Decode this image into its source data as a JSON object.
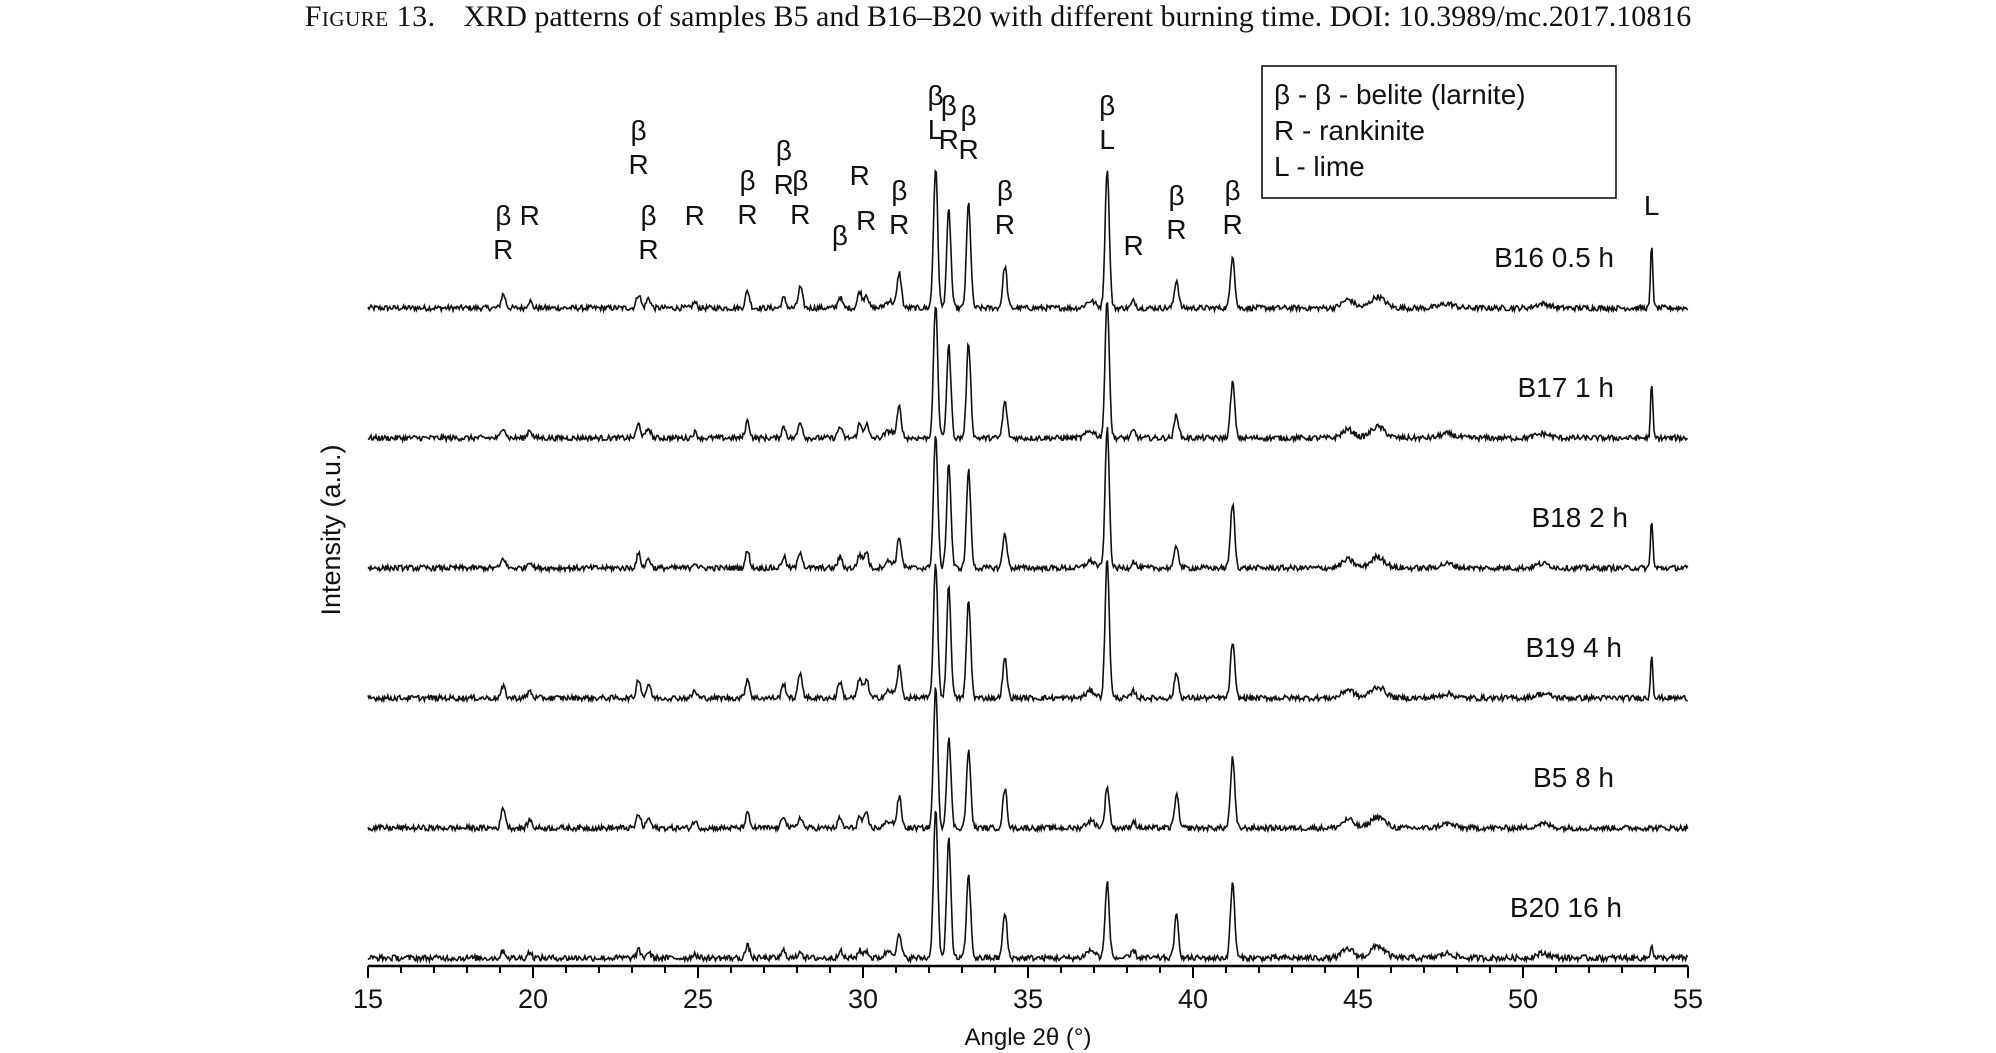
{
  "caption": {
    "label": "Figure 13.",
    "text": "XRD patterns of samples B5 and B16–B20 with different burning time. DOI: 10.3989/mc.2017.10816"
  },
  "chart_data": {
    "type": "line",
    "xlabel": "Angle 2θ (°)",
    "ylabel": "Intensity (a.u.)",
    "xlim": [
      15,
      55
    ],
    "xticks": [
      15,
      20,
      25,
      30,
      35,
      40,
      45,
      50,
      55
    ],
    "legend": {
      "placement": "top-right",
      "entries": [
        "β - β - belite (larnite)",
        "R - rankinite",
        "L - lime"
      ]
    },
    "peaks": [
      {
        "x": 19.1,
        "phases": "β R"
      },
      {
        "x": 19.9,
        "phases": "R"
      },
      {
        "x": 23.2,
        "phases": "β R"
      },
      {
        "x": 23.5,
        "phases": "β R"
      },
      {
        "x": 24.9,
        "phases": "R"
      },
      {
        "x": 26.5,
        "phases": "β R"
      },
      {
        "x": 27.6,
        "phases": "β R"
      },
      {
        "x": 28.1,
        "phases": "β R"
      },
      {
        "x": 29.3,
        "phases": "β"
      },
      {
        "x": 29.9,
        "phases": "R"
      },
      {
        "x": 30.1,
        "phases": "R"
      },
      {
        "x": 31.1,
        "phases": "β R"
      },
      {
        "x": 32.2,
        "phases": "β L"
      },
      {
        "x": 32.6,
        "phases": "β R"
      },
      {
        "x": 33.2,
        "phases": "β R"
      },
      {
        "x": 34.3,
        "phases": "β R"
      },
      {
        "x": 37.4,
        "phases": "β L"
      },
      {
        "x": 38.2,
        "phases": "R"
      },
      {
        "x": 39.5,
        "phases": "β R"
      },
      {
        "x": 41.2,
        "phases": "β R"
      },
      {
        "x": 53.9,
        "phases": "L"
      }
    ],
    "series": [
      {
        "name": "B16 0.5 h",
        "peak_heights": [
          0.1,
          0.05,
          0.1,
          0.07,
          0.04,
          0.12,
          0.07,
          0.15,
          0.08,
          0.12,
          0.1,
          0.25,
          1.0,
          0.7,
          0.75,
          0.3,
          1.0,
          0.05,
          0.2,
          0.38,
          0.45
        ]
      },
      {
        "name": "B17 1 h",
        "peak_heights": [
          0.08,
          0.06,
          0.1,
          0.07,
          0.04,
          0.12,
          0.08,
          0.12,
          0.08,
          0.1,
          0.1,
          0.22,
          0.95,
          0.66,
          0.68,
          0.26,
          1.0,
          0.05,
          0.17,
          0.4,
          0.38
        ]
      },
      {
        "name": "B18 2 h",
        "peak_heights": [
          0.07,
          0.05,
          0.1,
          0.07,
          0.04,
          0.12,
          0.08,
          0.12,
          0.08,
          0.1,
          0.12,
          0.22,
          0.95,
          0.75,
          0.7,
          0.25,
          1.0,
          0.05,
          0.16,
          0.46,
          0.35
        ]
      },
      {
        "name": "B19 4 h",
        "peak_heights": [
          0.08,
          0.05,
          0.14,
          0.1,
          0.05,
          0.14,
          0.1,
          0.18,
          0.12,
          0.14,
          0.14,
          0.22,
          0.95,
          0.8,
          0.7,
          0.28,
          1.0,
          0.05,
          0.18,
          0.4,
          0.32
        ]
      },
      {
        "name": "B5 8 h",
        "peak_heights": [
          0.15,
          0.06,
          0.1,
          0.07,
          0.05,
          0.1,
          0.09,
          0.08,
          0.07,
          0.08,
          0.1,
          0.22,
          1.0,
          0.65,
          0.55,
          0.28,
          0.3,
          0.05,
          0.24,
          0.5,
          0.0
        ]
      },
      {
        "name": "B20 16 h",
        "peak_heights": [
          0.05,
          0.04,
          0.05,
          0.04,
          0.03,
          0.08,
          0.05,
          0.05,
          0.05,
          0.05,
          0.05,
          0.15,
          1.0,
          0.8,
          0.55,
          0.3,
          0.5,
          0.05,
          0.28,
          0.5,
          0.1
        ]
      }
    ]
  }
}
